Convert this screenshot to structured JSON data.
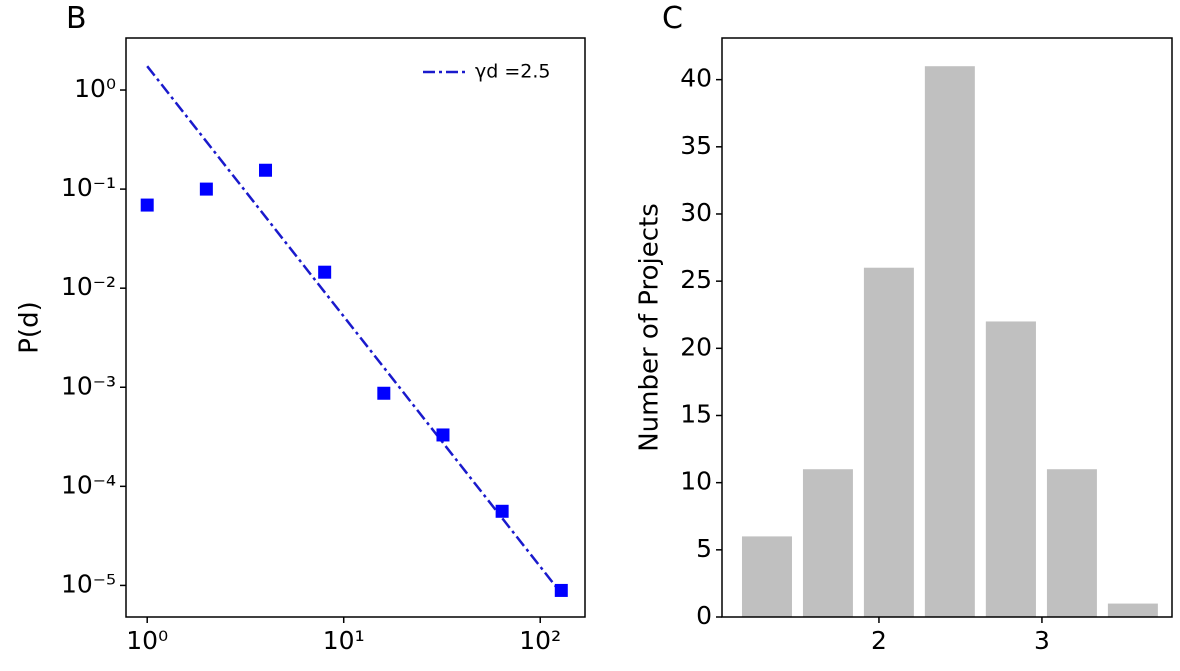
{
  "chart_data": [
    {
      "type": "scatter",
      "label": "B",
      "ylabel": "P(d)",
      "log_x": true,
      "log_y": true,
      "legend": "upper right",
      "xlim": [
        0.78,
        169
      ],
      "ylim": [
        4.8e-06,
        3.35
      ],
      "xticks": [
        {
          "value": 1,
          "label": "10⁰"
        },
        {
          "value": 10,
          "label": "10¹"
        },
        {
          "value": 100,
          "label": "10²"
        }
      ],
      "yticks": [
        {
          "value": 1,
          "label": "10⁰"
        },
        {
          "value": 0.1,
          "label": "10⁻¹"
        },
        {
          "value": 0.01,
          "label": "10⁻²"
        },
        {
          "value": 0.001,
          "label": "10⁻³"
        },
        {
          "value": 0.0001,
          "label": "10⁻⁴"
        },
        {
          "value": 1e-05,
          "label": "10⁻⁵"
        }
      ],
      "series": [
        {
          "name": "γd =2.5",
          "type": "line",
          "color": "#1a1acc",
          "x": [
            1,
            128
          ],
          "values": [
            1.74,
            8.3e-06
          ]
        },
        {
          "type": "scatter",
          "color": "#0000ff",
          "x": [
            1,
            2,
            4,
            8,
            16,
            32,
            64,
            128
          ],
          "values": [
            0.069,
            0.1,
            0.155,
            0.0145,
            0.00087,
            0.00033,
            5.6e-05,
            8.9e-06
          ]
        }
      ]
    },
    {
      "type": "histogram",
      "label": "C",
      "ylabel": "Number of Projects",
      "color": "#c0c0c0",
      "bins": [
        1.126,
        1.5,
        1.874,
        2.248,
        2.622,
        2.997,
        3.371,
        3.745
      ],
      "values": [
        6,
        11,
        26,
        41,
        22,
        11,
        1
      ],
      "xlim": [
        1.037,
        3.798
      ],
      "ylim": [
        0,
        43.1
      ],
      "xticks": [
        2,
        3
      ],
      "yticks": [
        0,
        5,
        10,
        15,
        20,
        25,
        30,
        35,
        40
      ]
    }
  ]
}
